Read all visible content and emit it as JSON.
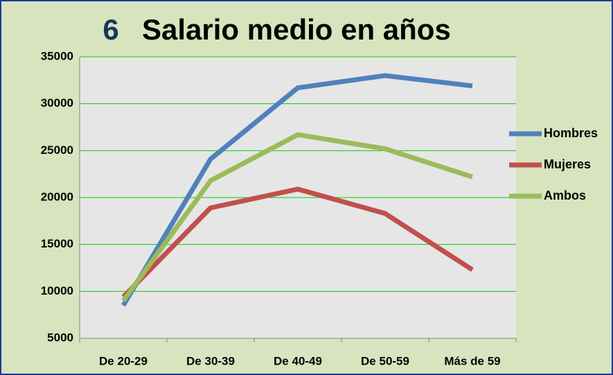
{
  "chart_data": {
    "type": "line",
    "title_number": "6",
    "title": "Salario medio en años",
    "categories": [
      "De 20-29",
      "De 30-39",
      "De 40-49",
      "De 50-59",
      "Más de 59"
    ],
    "series": [
      {
        "name": "Hombres",
        "color": "#4f81bd",
        "values": [
          8500,
          24100,
          31700,
          33000,
          31900
        ]
      },
      {
        "name": "Mujeres",
        "color": "#c0504d",
        "values": [
          9400,
          18900,
          20900,
          18300,
          12300
        ]
      },
      {
        "name": "Ambos",
        "color": "#9bbb59",
        "values": [
          9000,
          21800,
          26700,
          25200,
          22200
        ]
      }
    ],
    "ylim": [
      5000,
      35000
    ],
    "yticks": [
      5000,
      10000,
      15000,
      20000,
      25000,
      30000,
      35000
    ],
    "grid": true,
    "legend": "right"
  }
}
